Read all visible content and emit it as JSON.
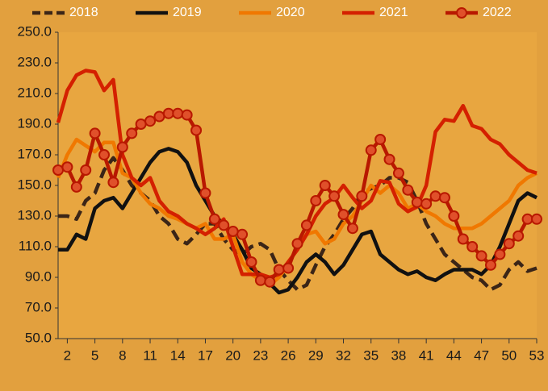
{
  "chart_data": {
    "type": "line",
    "x": [
      1,
      2,
      3,
      4,
      5,
      6,
      7,
      8,
      9,
      10,
      11,
      12,
      13,
      14,
      15,
      16,
      17,
      18,
      19,
      20,
      21,
      22,
      23,
      24,
      25,
      26,
      27,
      28,
      29,
      30,
      31,
      32,
      33,
      34,
      35,
      36,
      37,
      38,
      39,
      40,
      41,
      42,
      43,
      44,
      45,
      46,
      47,
      48,
      49,
      50,
      51,
      52,
      53
    ],
    "xlim": [
      1,
      53
    ],
    "xticks": [
      2,
      5,
      8,
      11,
      14,
      17,
      20,
      23,
      26,
      29,
      32,
      35,
      38,
      41,
      44,
      47,
      50,
      53
    ],
    "ylim": [
      50,
      250
    ],
    "yticks": [
      {
        "value": 50,
        "label": "50.0"
      },
      {
        "value": 70,
        "label": "70.0"
      },
      {
        "value": 90,
        "label": "90.0"
      },
      {
        "value": 110,
        "label": "110.0"
      },
      {
        "value": 130,
        "label": "130.0"
      },
      {
        "value": 150,
        "label": "150.0"
      },
      {
        "value": 170,
        "label": "170.0"
      },
      {
        "value": 190,
        "label": "190.0"
      },
      {
        "value": 210,
        "label": "210.0"
      },
      {
        "value": 230,
        "label": "230.0"
      },
      {
        "value": 250,
        "label": "250.0"
      }
    ],
    "series": [
      {
        "name": "2018",
        "color": "#3b2517",
        "dash": true,
        "values": [
          130,
          130,
          128,
          140,
          145,
          160,
          168,
          160,
          150,
          145,
          140,
          130,
          125,
          115,
          112,
          118,
          125,
          125,
          115,
          108,
          105,
          110,
          112,
          108,
          95,
          88,
          82,
          85,
          98,
          110,
          118,
          128,
          135,
          145,
          148,
          150,
          155,
          155,
          152,
          140,
          125,
          115,
          105,
          100,
          95,
          90,
          88,
          82,
          85,
          95,
          100,
          94,
          96
        ]
      },
      {
        "name": "2019",
        "color": "#111111",
        "values": [
          108,
          108,
          118,
          115,
          135,
          140,
          142,
          135,
          145,
          155,
          165,
          172,
          174,
          172,
          165,
          150,
          140,
          130,
          125,
          118,
          108,
          96,
          92,
          86,
          80,
          82,
          90,
          100,
          105,
          100,
          92,
          98,
          108,
          118,
          120,
          105,
          100,
          95,
          92,
          94,
          90,
          88,
          92,
          95,
          95,
          95,
          92,
          98,
          110,
          125,
          140,
          145,
          142
        ]
      },
      {
        "name": "2020",
        "color": "#f07800",
        "values": [
          155,
          170,
          180,
          176,
          172,
          178,
          178,
          158,
          155,
          145,
          138,
          135,
          130,
          128,
          125,
          122,
          125,
          115,
          115,
          118,
          100,
          92,
          88,
          85,
          90,
          98,
          110,
          118,
          120,
          112,
          115,
          125,
          130,
          140,
          150,
          145,
          150,
          145,
          135,
          138,
          133,
          130,
          125,
          122,
          122,
          122,
          125,
          130,
          135,
          140,
          150,
          155,
          158
        ]
      },
      {
        "name": "2021",
        "color": "#d42000",
        "values": [
          191,
          212,
          222,
          225,
          224,
          212,
          219,
          170,
          155,
          150,
          155,
          140,
          133,
          130,
          125,
          122,
          118,
          122,
          128,
          110,
          92,
          92,
          92,
          90,
          92,
          100,
          108,
          118,
          130,
          138,
          142,
          150,
          142,
          135,
          140,
          153,
          152,
          138,
          133,
          136,
          150,
          185,
          193,
          192,
          202,
          189,
          187,
          180,
          177,
          170,
          165,
          160,
          158
        ]
      },
      {
        "name": "2022",
        "color": "#b81800",
        "marker": "circle",
        "marker_fill": "#e0502a",
        "values": [
          160,
          162,
          149,
          160,
          184,
          170,
          152,
          175,
          184,
          190,
          192,
          195,
          197,
          197,
          196,
          186,
          145,
          128,
          124,
          120,
          118,
          100,
          88,
          87,
          95,
          96,
          112,
          124,
          140,
          150,
          143,
          131,
          122,
          143,
          173,
          180,
          167,
          158,
          147,
          139,
          138,
          143,
          142,
          130,
          115,
          110,
          104,
          98,
          105,
          112,
          117,
          128,
          128
        ]
      }
    ]
  }
}
